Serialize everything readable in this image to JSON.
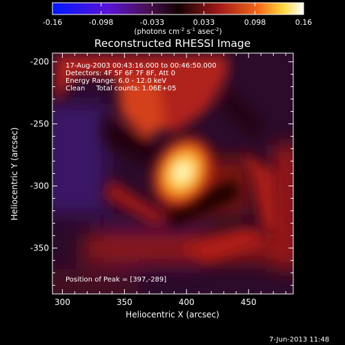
{
  "chart_data": {
    "type": "heatmap",
    "title": "Reconstructed RHESSI Image",
    "xlabel": "Heliocentric X (arcsec)",
    "ylabel": "Heliocentric Y (arcsec)",
    "xlim": [
      292,
      486
    ],
    "ylim": [
      -387,
      -193
    ],
    "x_ticks": [
      300,
      350,
      400,
      450
    ],
    "y_ticks": [
      -200,
      -250,
      -300,
      -350
    ],
    "colorbar": {
      "range": [
        -0.16,
        0.16
      ],
      "ticks": [
        "-0.16",
        "-0.098",
        "-0.033",
        "0.033",
        "0.098",
        "0.16"
      ],
      "unit_main": "(photons cm",
      "unit_exp1": "-2",
      "unit_mid": " s",
      "unit_exp2": "-1",
      "unit_mid2": " asec",
      "unit_exp3": "-2",
      "unit_close": ")"
    },
    "info_lines": [
      "17-Aug-2003 00:43:16.000 to 00:46:50.000",
      "Detectors: 4F 5F 6F 7F 8F, Att 0",
      "Energy Range: 6.0 - 12.0 keV",
      "Clean     Total counts: 1.06E+05"
    ],
    "peak_label": "Position of Peak = [397,-289]",
    "peak": {
      "x": 397,
      "y": -289,
      "value": 0.16
    },
    "features": [
      {
        "kind": "main-peak",
        "x": 397,
        "y": -289,
        "value": 0.16
      },
      {
        "kind": "upper-arc",
        "x": 360,
        "y": -215,
        "value": 0.06
      },
      {
        "kind": "right-arc",
        "x": 455,
        "y": -325,
        "value": 0.04
      },
      {
        "kind": "lower-band",
        "x": 400,
        "y": -360,
        "value": 0.035
      },
      {
        "kind": "left-trough",
        "x": 300,
        "y": -270,
        "value": -0.09
      }
    ],
    "grid": false
  },
  "footer": {
    "date": "7-Jun-2013 11:48"
  }
}
